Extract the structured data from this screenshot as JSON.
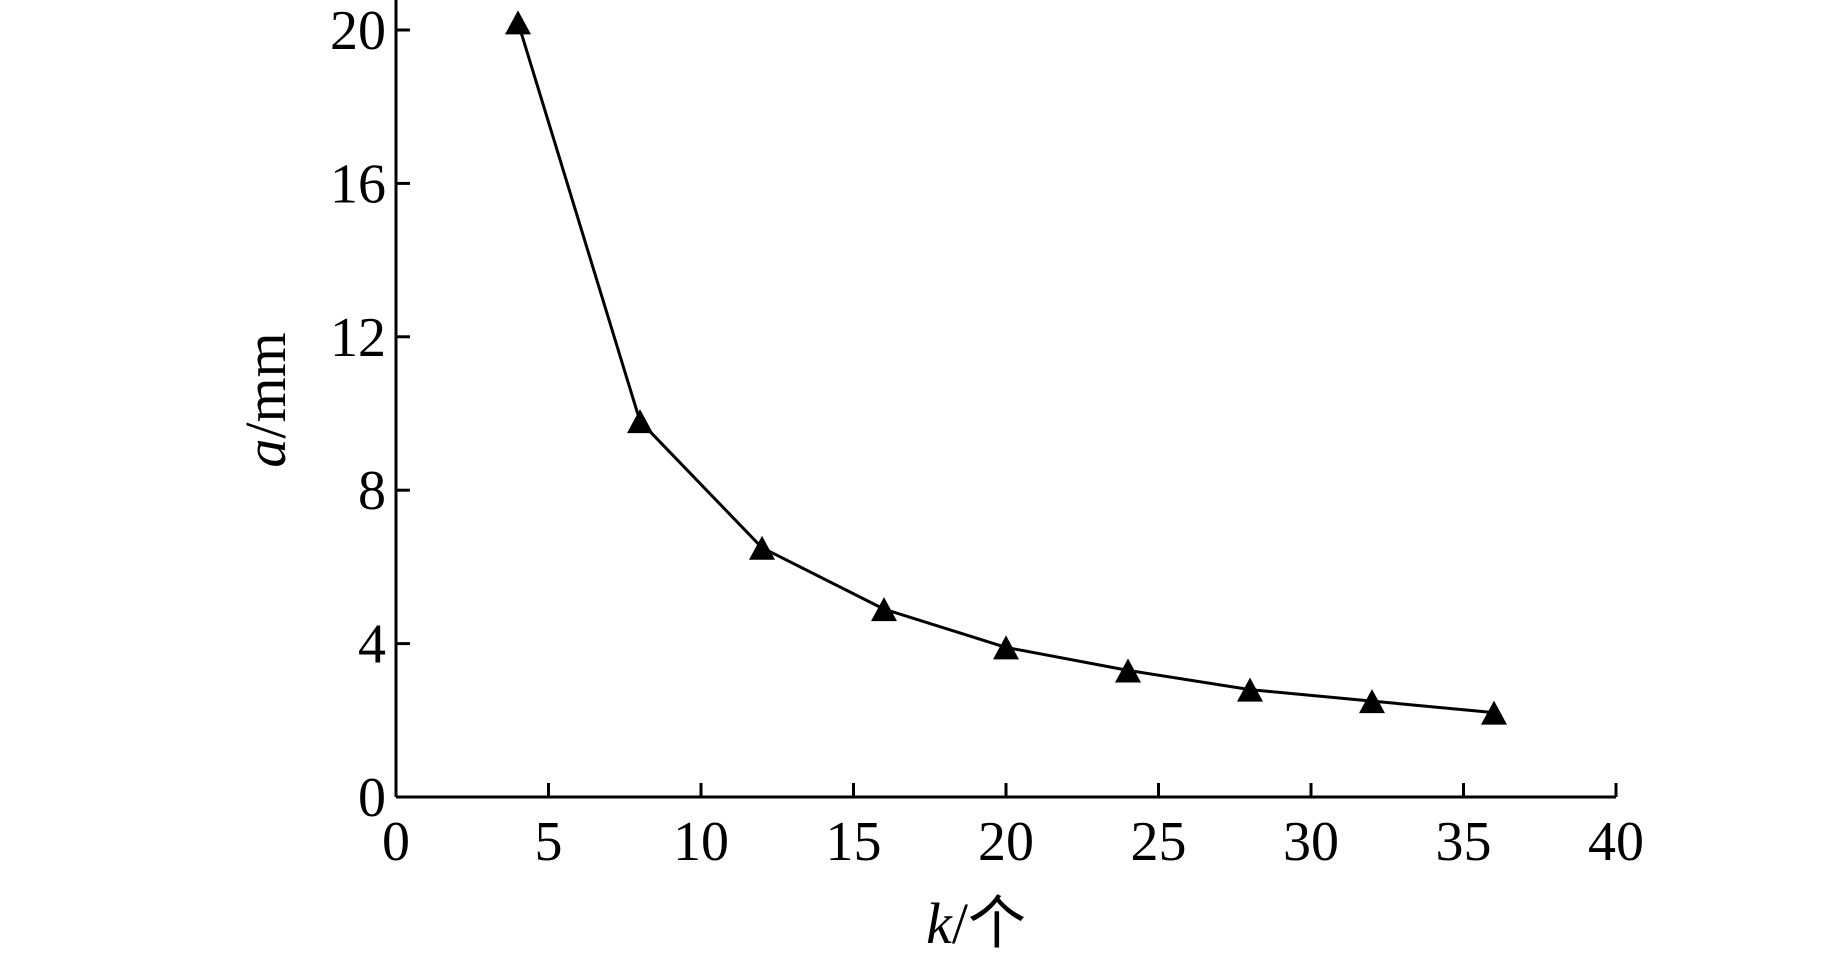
{
  "chart_data": {
    "type": "line",
    "title": "",
    "xlabel_var": "k",
    "xlabel_unit": "/个",
    "ylabel_var": "a",
    "ylabel_unit": "/mm",
    "xlim": [
      0,
      40
    ],
    "ylim": [
      0,
      20
    ],
    "xticks": [
      0,
      5,
      10,
      15,
      20,
      25,
      30,
      35,
      40
    ],
    "yticks": [
      0,
      4,
      8,
      12,
      16,
      20
    ],
    "grid": false,
    "legend": "none",
    "marker": "triangle",
    "line_color": "#000000",
    "series": [
      {
        "x": [
          4,
          8,
          12,
          16,
          20,
          24,
          28,
          32,
          36
        ],
        "values": [
          20.2,
          9.8,
          6.5,
          4.9,
          3.9,
          3.3,
          2.8,
          2.5,
          2.2
        ]
      }
    ]
  }
}
